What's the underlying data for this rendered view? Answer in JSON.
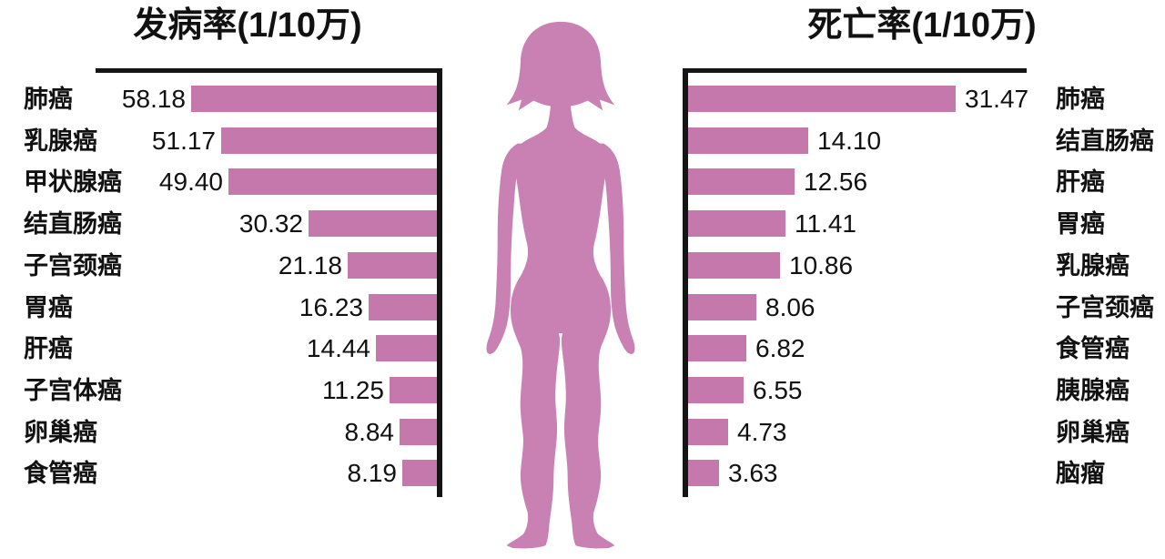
{
  "page": {
    "background": "#ffffff"
  },
  "colors": {
    "bar": "#c478ab",
    "figure": "#c981b3",
    "axis": "#151515",
    "text": "#111111"
  },
  "figure": {
    "name": "female-silhouette",
    "description": "standing woman silhouette between the two charts"
  },
  "chart_data": [
    {
      "type": "bar",
      "orientation": "horizontal",
      "bar_direction": "right-to-left",
      "position": "left",
      "title": "发病率(1/10万)",
      "categories": [
        "肺癌",
        "乳腺癌",
        "甲状腺癌",
        "结直肠癌",
        "子宫颈癌",
        "胃癌",
        "肝癌",
        "子宫体癌",
        "卵巢癌",
        "食管癌"
      ],
      "values": [
        58.18,
        51.17,
        49.4,
        30.32,
        21.18,
        16.23,
        14.44,
        11.25,
        8.84,
        8.19
      ],
      "value_labels": [
        "58.18",
        "51.17",
        "49.40",
        "30.32",
        "21.18",
        "16.23",
        "14.44",
        "11.25",
        "8.84",
        "8.19"
      ],
      "xlim": [
        0,
        62
      ],
      "grid": false,
      "legend": "none",
      "value_label_position": "outside-left-of-bar",
      "category_label_position": "far-left"
    },
    {
      "type": "bar",
      "orientation": "horizontal",
      "bar_direction": "left-to-right",
      "position": "right",
      "title": "死亡率(1/10万)",
      "categories": [
        "肺癌",
        "结直肠癌",
        "肝癌",
        "胃癌",
        "乳腺癌",
        "子宫颈癌",
        "食管癌",
        "胰腺癌",
        "卵巢癌",
        "脑瘤"
      ],
      "values": [
        31.47,
        14.1,
        12.56,
        11.41,
        10.86,
        8.06,
        6.82,
        6.55,
        4.73,
        3.63
      ],
      "value_labels": [
        "31.47",
        "14.10",
        "12.56",
        "11.41",
        "10.86",
        "8.06",
        "6.82",
        "6.55",
        "4.73",
        "3.63"
      ],
      "xlim": [
        0,
        34
      ],
      "grid": false,
      "legend": "none",
      "value_label_position": "outside-right-of-bar",
      "category_label_position": "far-right"
    }
  ]
}
